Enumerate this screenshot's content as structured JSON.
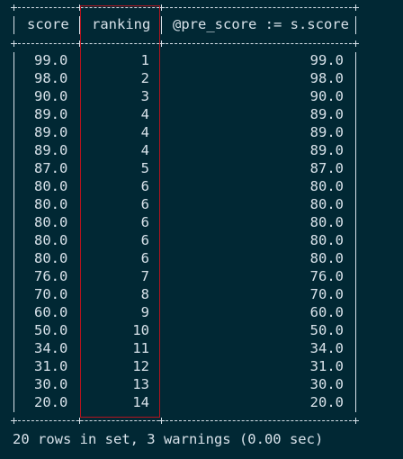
{
  "columns": {
    "score": "score",
    "ranking": "ranking",
    "pre_score": "@pre_score := s.score"
  },
  "rows": [
    {
      "score": "99.0",
      "ranking": "1",
      "pre_score": "99.0"
    },
    {
      "score": "98.0",
      "ranking": "2",
      "pre_score": "98.0"
    },
    {
      "score": "90.0",
      "ranking": "3",
      "pre_score": "90.0"
    },
    {
      "score": "89.0",
      "ranking": "4",
      "pre_score": "89.0"
    },
    {
      "score": "89.0",
      "ranking": "4",
      "pre_score": "89.0"
    },
    {
      "score": "89.0",
      "ranking": "4",
      "pre_score": "89.0"
    },
    {
      "score": "87.0",
      "ranking": "5",
      "pre_score": "87.0"
    },
    {
      "score": "80.0",
      "ranking": "6",
      "pre_score": "80.0"
    },
    {
      "score": "80.0",
      "ranking": "6",
      "pre_score": "80.0"
    },
    {
      "score": "80.0",
      "ranking": "6",
      "pre_score": "80.0"
    },
    {
      "score": "80.0",
      "ranking": "6",
      "pre_score": "80.0"
    },
    {
      "score": "80.0",
      "ranking": "6",
      "pre_score": "80.0"
    },
    {
      "score": "76.0",
      "ranking": "7",
      "pre_score": "76.0"
    },
    {
      "score": "70.0",
      "ranking": "8",
      "pre_score": "70.0"
    },
    {
      "score": "60.0",
      "ranking": "9",
      "pre_score": "60.0"
    },
    {
      "score": "50.0",
      "ranking": "10",
      "pre_score": "50.0"
    },
    {
      "score": "34.0",
      "ranking": "11",
      "pre_score": "34.0"
    },
    {
      "score": "31.0",
      "ranking": "12",
      "pre_score": "31.0"
    },
    {
      "score": "30.0",
      "ranking": "13",
      "pre_score": "30.0"
    },
    {
      "score": "20.0",
      "ranking": "14",
      "pre_score": "20.0"
    }
  ],
  "footer": "20 rows in set, 3 warnings (0.00 sec)",
  "colors": {
    "background": "#012834",
    "text": "#d8e2ea",
    "highlight": "#b3141e"
  }
}
